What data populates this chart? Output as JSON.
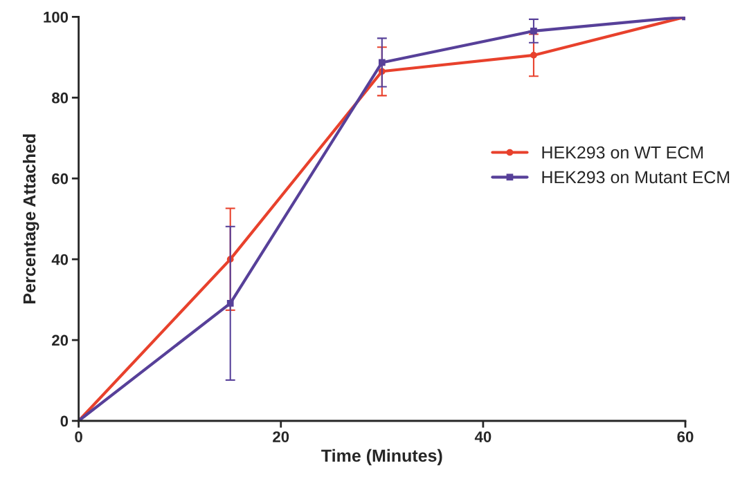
{
  "chart_data": {
    "type": "line",
    "xlabel": "Time (Minutes)",
    "ylabel": "Percentage Attached",
    "x": [
      0,
      15,
      30,
      45,
      60
    ],
    "series": [
      {
        "name": "HEK293 on WT ECM",
        "color": "#e8412c",
        "marker": "circle",
        "values": [
          0,
          40,
          86.5,
          90.5,
          100
        ],
        "errors": [
          null,
          12.6,
          6,
          5.2,
          null
        ]
      },
      {
        "name": "HEK293 on Mutant ECM",
        "color": "#574099",
        "marker": "square",
        "values": [
          0,
          29.1,
          88.7,
          96.5,
          100
        ],
        "errors": [
          null,
          19,
          6,
          2.9,
          null
        ]
      }
    ],
    "xlim": [
      0,
      60
    ],
    "xticks": [
      0,
      20,
      40,
      60
    ],
    "ylim": [
      0,
      100
    ],
    "yticks": [
      0,
      20,
      40,
      60,
      80,
      100
    ],
    "grid": false,
    "legend": "right"
  }
}
